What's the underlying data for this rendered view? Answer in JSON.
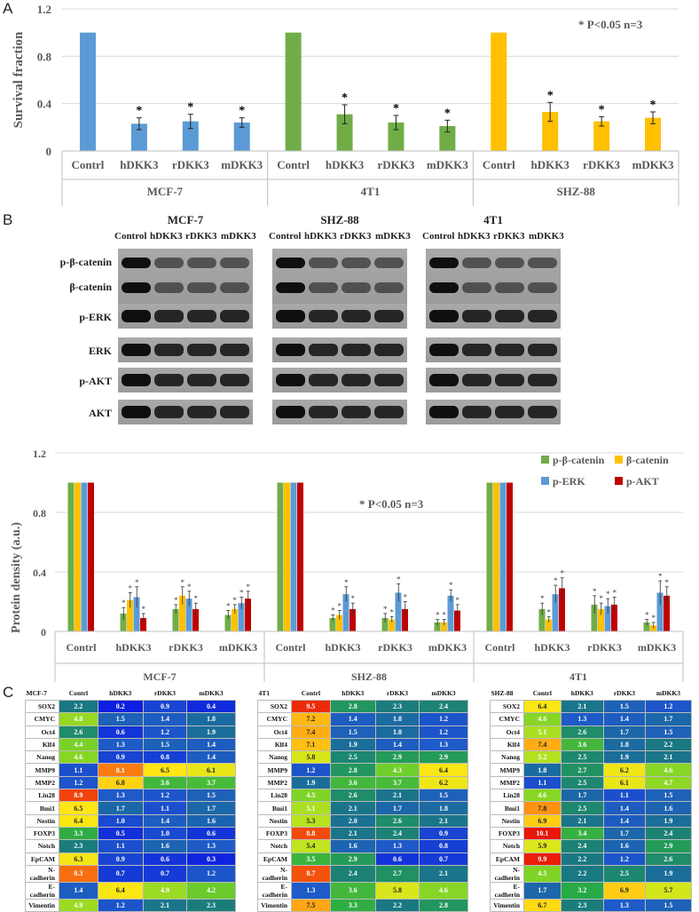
{
  "panels": {
    "a": "A",
    "b": "B",
    "c": "C"
  },
  "chartA": {
    "type": "bar",
    "title": "",
    "ylabel": "Survival fraction",
    "ylim": [
      0,
      1.2
    ],
    "yticks": [
      "0",
      "0.4",
      "0.8",
      "1.2"
    ],
    "annotation": "* P<0.05  n=3",
    "groups": [
      {
        "name": "MCF-7",
        "color": "#5b9bd5",
        "categories": [
          "Contrl",
          "hDKK3",
          "rDKK3",
          "mDKK3"
        ],
        "values": [
          1.0,
          0.23,
          0.25,
          0.24
        ],
        "errors": [
          0,
          0.05,
          0.06,
          0.04
        ],
        "sig": [
          "",
          "*",
          "*",
          "*"
        ]
      },
      {
        "name": "4T1",
        "color": "#70ad47",
        "categories": [
          "Contrl",
          "hDKK3",
          "rDKK3",
          "mDKK3"
        ],
        "values": [
          1.0,
          0.31,
          0.24,
          0.21
        ],
        "errors": [
          0,
          0.08,
          0.06,
          0.05
        ],
        "sig": [
          "",
          "*",
          "*",
          "*"
        ]
      },
      {
        "name": "SHZ-88",
        "color": "#ffc000",
        "categories": [
          "Contrl",
          "hDKK3",
          "rDKK3",
          "mDKK3"
        ],
        "values": [
          1.0,
          0.33,
          0.25,
          0.28
        ],
        "errors": [
          0,
          0.08,
          0.04,
          0.05
        ],
        "sig": [
          "",
          "*",
          "*",
          "*"
        ]
      }
    ]
  },
  "blots": {
    "cells": [
      "MCF-7",
      "SHZ-88",
      "4T1"
    ],
    "lanes": [
      "Control",
      "hDKK3",
      "rDKK3",
      "mDKK3"
    ],
    "rows": [
      "p-β-catenin",
      "β-catenin",
      "p-ERK",
      "ERK",
      "p-AKT",
      "AKT"
    ]
  },
  "chartB": {
    "type": "bar",
    "title": "",
    "ylabel": "Protein density (a.u.)",
    "ylim": [
      0,
      1.2
    ],
    "yticks": [
      "0",
      "0.4",
      "0.8",
      "1.2"
    ],
    "annotation": "* P<0.05  n=3",
    "legend": [
      {
        "name": "p-β-catenin",
        "color": "#70ad47"
      },
      {
        "name": "β-catenin",
        "color": "#ffc000"
      },
      {
        "name": "p-ERK",
        "color": "#5b9bd5"
      },
      {
        "name": "p-AKT",
        "color": "#c00000"
      }
    ],
    "groups": [
      {
        "name": "MCF-7",
        "categories": [
          "Contrl",
          "hDKK3",
          "rDKK3",
          "mDKK3"
        ],
        "series": [
          [
            1.0,
            0.12,
            0.15,
            0.11
          ],
          [
            1.0,
            0.21,
            0.24,
            0.15
          ],
          [
            1.0,
            0.23,
            0.22,
            0.19
          ],
          [
            1.0,
            0.09,
            0.15,
            0.22
          ]
        ],
        "errors": [
          [
            0,
            0.04,
            0.03,
            0.03
          ],
          [
            0,
            0.05,
            0.06,
            0.03
          ],
          [
            0,
            0.07,
            0.05,
            0.04
          ],
          [
            0,
            0.03,
            0.04,
            0.05
          ]
        ]
      },
      {
        "name": "SHZ-88",
        "categories": [
          "Contrl",
          "hDKK3",
          "rDKK3",
          "mDKK3"
        ],
        "series": [
          [
            1.0,
            0.09,
            0.09,
            0.06
          ],
          [
            1.0,
            0.11,
            0.08,
            0.06
          ],
          [
            1.0,
            0.25,
            0.26,
            0.24
          ],
          [
            1.0,
            0.15,
            0.15,
            0.14
          ]
        ],
        "errors": [
          [
            0,
            0.02,
            0.03,
            0.02
          ],
          [
            0,
            0.03,
            0.02,
            0.02
          ],
          [
            0,
            0.05,
            0.06,
            0.04
          ],
          [
            0,
            0.04,
            0.05,
            0.04
          ]
        ]
      },
      {
        "name": "4T1",
        "categories": [
          "Contrl",
          "hDKK3",
          "rDKK3",
          "mDKK3"
        ],
        "series": [
          [
            1.0,
            0.15,
            0.18,
            0.06
          ],
          [
            1.0,
            0.08,
            0.15,
            0.04
          ],
          [
            1.0,
            0.25,
            0.17,
            0.26
          ],
          [
            1.0,
            0.29,
            0.18,
            0.24
          ]
        ],
        "errors": [
          [
            0,
            0.04,
            0.06,
            0.02
          ],
          [
            0,
            0.02,
            0.04,
            0.02
          ],
          [
            0,
            0.06,
            0.05,
            0.08
          ],
          [
            0,
            0.07,
            0.05,
            0.06
          ]
        ]
      }
    ]
  },
  "heatmaps": [
    {
      "cell": "MCF-7",
      "columns": [
        "Contrl",
        "hDKK3",
        "rDKK3",
        "mDKK3"
      ],
      "rows": [
        {
          "gene": "SOX2",
          "values": [
            "2.2",
            "0.2",
            "0.9",
            "0.4"
          ]
        },
        {
          "gene": "CMYC",
          "values": [
            "4.8",
            "1.5",
            "1.4",
            "1.8"
          ]
        },
        {
          "gene": "Oct4",
          "values": [
            "2.6",
            "0.6",
            "1.2",
            "1.9"
          ]
        },
        {
          "gene": "Klf4",
          "values": [
            "4.4",
            "1.3",
            "1.5",
            "1.4"
          ]
        },
        {
          "gene": "Nanog",
          "values": [
            "4.6",
            "0.9",
            "0.8",
            "1.4"
          ]
        },
        {
          "gene": "MMP9",
          "values": [
            "1.1",
            "8.1",
            "6.5",
            "6.1"
          ]
        },
        {
          "gene": "MMP2",
          "values": [
            "1.2",
            "6.8",
            "3.6",
            "3.7"
          ]
        },
        {
          "gene": "Lin28",
          "values": [
            "8.9",
            "1.3",
            "1.2",
            "1.5"
          ]
        },
        {
          "gene": "Bmi1",
          "values": [
            "6.5",
            "1.7",
            "1.1",
            "1.7"
          ]
        },
        {
          "gene": "Nestin",
          "values": [
            "6.4",
            "1.0",
            "1.4",
            "1.6"
          ]
        },
        {
          "gene": "FOXP3",
          "values": [
            "3.3",
            "0.5",
            "1.0",
            "0.6"
          ]
        },
        {
          "gene": "Notch",
          "values": [
            "2.3",
            "1.1",
            "1.6",
            "1.3"
          ]
        },
        {
          "gene": "EpCAM",
          "values": [
            "6.3",
            "0.9",
            "0.6",
            "0.3"
          ]
        },
        {
          "gene": "N-cadherin",
          "values": [
            "8.3",
            "0.7",
            "0.7",
            "1.2"
          ]
        },
        {
          "gene": "E-cadherin",
          "values": [
            "1.4",
            "6.4",
            "4.9",
            "4.2"
          ]
        },
        {
          "gene": "Vimentin",
          "values": [
            "4.9",
            "1.2",
            "2.1",
            "2.3"
          ]
        }
      ]
    },
    {
      "cell": "4T1",
      "columns": [
        "Contrl",
        "hDKK3",
        "rDKK3",
        "mDKK3"
      ],
      "rows": [
        {
          "gene": "SOX2",
          "values": [
            "9.5",
            "2.8",
            "2.3",
            "2.4"
          ]
        },
        {
          "gene": "CMYC",
          "values": [
            "7.2",
            "1.4",
            "1.8",
            "1.2"
          ]
        },
        {
          "gene": "Oct4",
          "values": [
            "7.4",
            "1.5",
            "1.8",
            "1.2"
          ]
        },
        {
          "gene": "Klf4",
          "values": [
            "7.1",
            "1.9",
            "1.4",
            "1.3"
          ]
        },
        {
          "gene": "Nanog",
          "values": [
            "5.8",
            "2.5",
            "2.9",
            "2.9"
          ]
        },
        {
          "gene": "MMP9",
          "values": [
            "1.2",
            "2.8",
            "4.3",
            "6.4"
          ]
        },
        {
          "gene": "MMP2",
          "values": [
            "1.9",
            "3.6",
            "3.7",
            "6.2"
          ]
        },
        {
          "gene": "Lin28",
          "values": [
            "4.5",
            "2.6",
            "2.1",
            "1.5"
          ]
        },
        {
          "gene": "Bmi1",
          "values": [
            "5.1",
            "2.1",
            "1.7",
            "1.8"
          ]
        },
        {
          "gene": "Nestin",
          "values": [
            "5.3",
            "2.0",
            "2.6",
            "2.1"
          ]
        },
        {
          "gene": "FOXP3",
          "values": [
            "8.8",
            "2.1",
            "2.4",
            "0.9"
          ]
        },
        {
          "gene": "Notch",
          "values": [
            "5.4",
            "1.6",
            "1.3",
            "0.8"
          ]
        },
        {
          "gene": "EpCAM",
          "values": [
            "3.5",
            "2.9",
            "0.6",
            "0.7"
          ]
        },
        {
          "gene": "N-cadherin",
          "values": [
            "8.7",
            "2.4",
            "2.7",
            "2.1"
          ]
        },
        {
          "gene": "E-cadherin",
          "values": [
            "1.3",
            "3.6",
            "5.8",
            "4.6"
          ]
        },
        {
          "gene": "Vimentin",
          "values": [
            "7.5",
            "3.3",
            "2.2",
            "2.8"
          ]
        }
      ]
    },
    {
      "cell": "SHZ-88",
      "columns": [
        "Contrl",
        "hDKK3",
        "rDKK3",
        "mDKK3"
      ],
      "rows": [
        {
          "gene": "SOX2",
          "values": [
            "6.4",
            "2.1",
            "1.5",
            "1.2"
          ]
        },
        {
          "gene": "CMYC",
          "values": [
            "4.6",
            "1.3",
            "1.4",
            "1.7"
          ]
        },
        {
          "gene": "Oct4",
          "values": [
            "5.1",
            "2.6",
            "1.7",
            "1.5"
          ]
        },
        {
          "gene": "Klf4",
          "values": [
            "7.4",
            "3.6",
            "1.8",
            "2.2"
          ]
        },
        {
          "gene": "Nanog",
          "values": [
            "5.2",
            "2.5",
            "1.9",
            "2.1"
          ]
        },
        {
          "gene": "MMP9",
          "values": [
            "1.8",
            "2.7",
            "6.2",
            "4.6"
          ]
        },
        {
          "gene": "MMP2",
          "values": [
            "1.1",
            "2.5",
            "6.1",
            "4.7"
          ]
        },
        {
          "gene": "Lin28",
          "values": [
            "4.6",
            "1.7",
            "1.1",
            "1.5"
          ]
        },
        {
          "gene": "Bmi1",
          "values": [
            "7.8",
            "2.5",
            "1.4",
            "1.6"
          ]
        },
        {
          "gene": "Nestin",
          "values": [
            "6.9",
            "2.1",
            "1.4",
            "1.9"
          ]
        },
        {
          "gene": "FOXP3",
          "values": [
            "10.1",
            "3.4",
            "1.7",
            "2.4"
          ]
        },
        {
          "gene": "Notch",
          "values": [
            "5.9",
            "2.4",
            "1.6",
            "2.9"
          ]
        },
        {
          "gene": "EpCAM",
          "values": [
            "9.9",
            "2.2",
            "1.2",
            "2.6"
          ]
        },
        {
          "gene": "N-cadherin",
          "values": [
            "4.5",
            "2.2",
            "2.5",
            "1.9"
          ]
        },
        {
          "gene": "E-cadherin",
          "values": [
            "1.7",
            "3.2",
            "6.9",
            "5.7"
          ]
        },
        {
          "gene": "Vimentin",
          "values": [
            "6.7",
            "2.3",
            "1.3",
            "1.5"
          ]
        }
      ]
    }
  ]
}
